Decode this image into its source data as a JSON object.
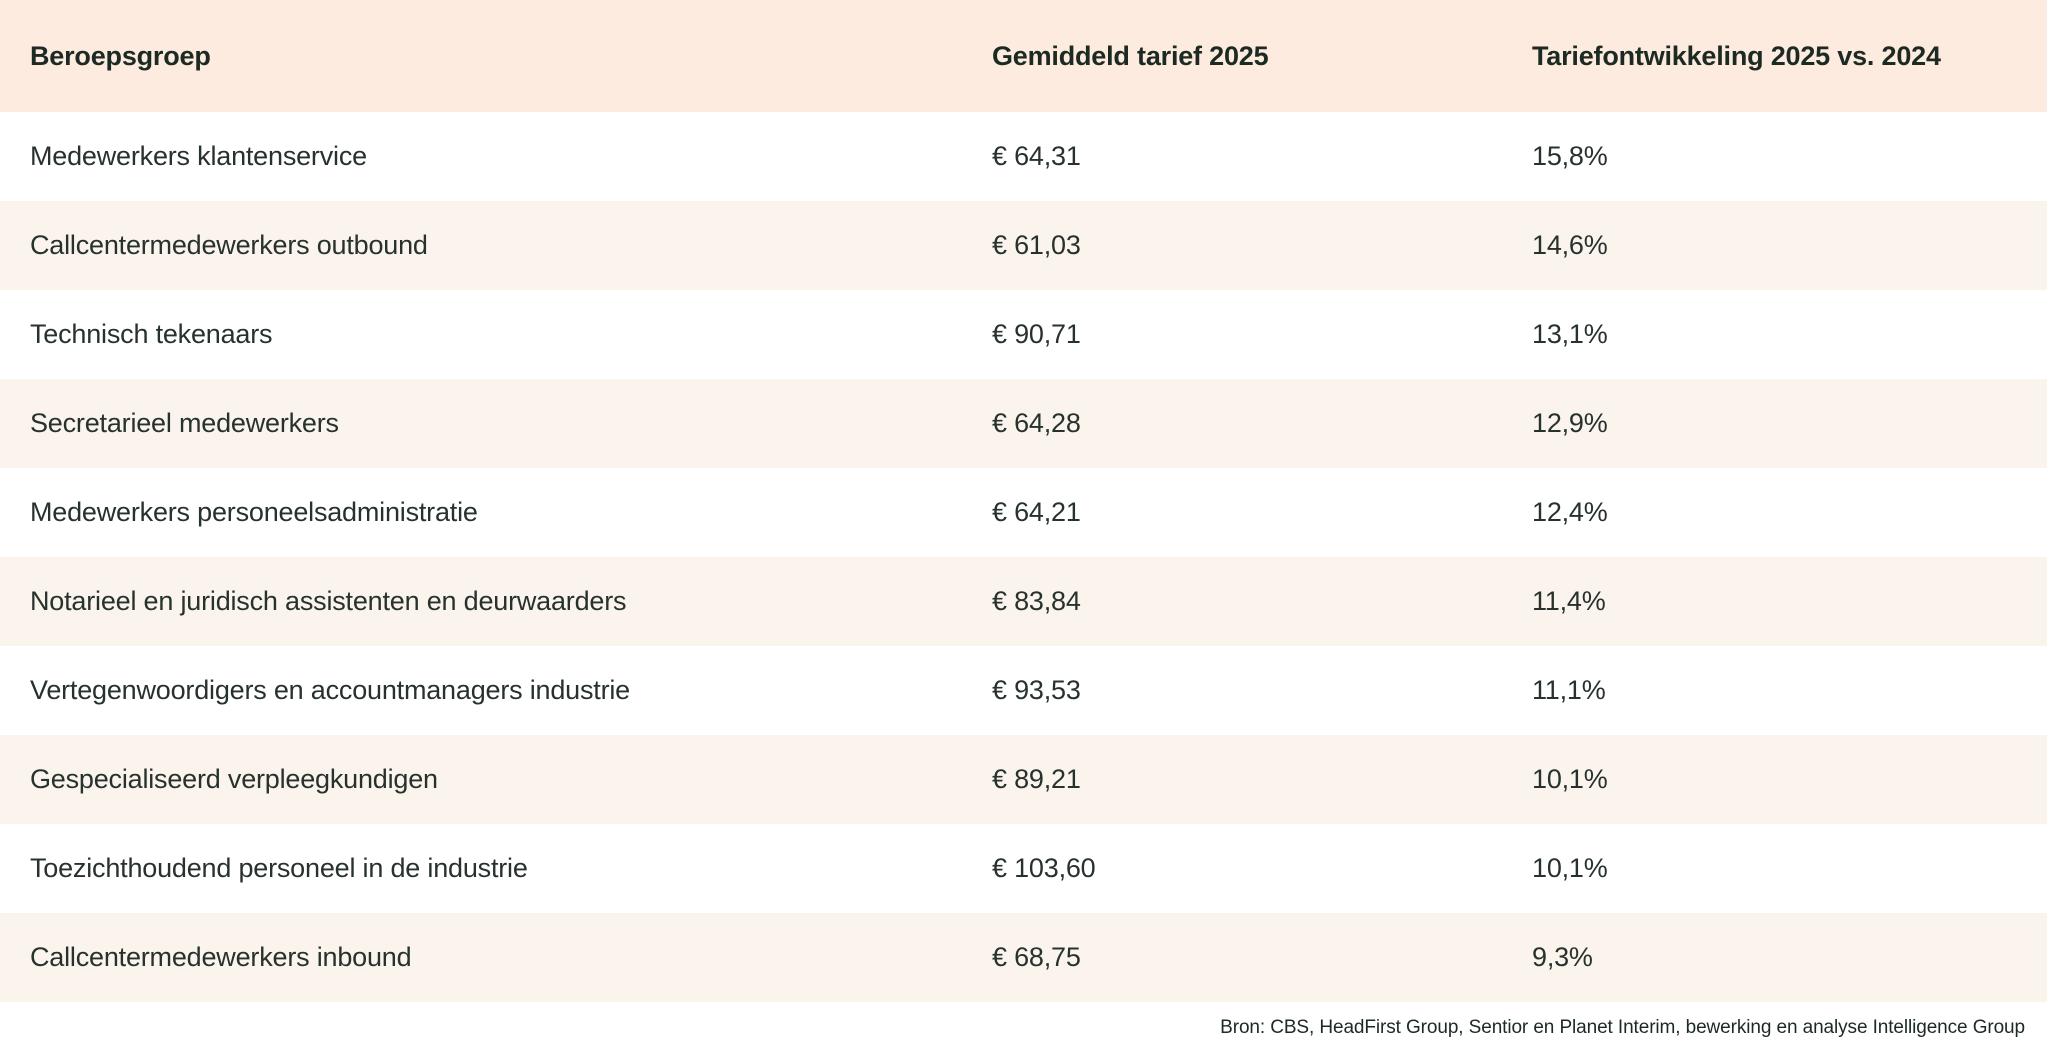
{
  "chart_data": {
    "type": "table",
    "columns": [
      "Beroepsgroep",
      "Gemiddeld tarief 2025",
      "Tariefontwikkeling 2025 vs. 2024"
    ],
    "rows": [
      [
        "Medewerkers klantenservice",
        "€ 64,31",
        "15,8%"
      ],
      [
        "Callcentermedewerkers outbound",
        "€ 61,03",
        "14,6%"
      ],
      [
        "Technisch tekenaars",
        "€ 90,71",
        "13,1%"
      ],
      [
        "Secretarieel medewerkers",
        "€ 64,28",
        "12,9%"
      ],
      [
        "Medewerkers personeelsadministratie",
        "€ 64,21",
        "12,4%"
      ],
      [
        "Notarieel en juridisch assistenten en deurwaarders",
        "€ 83,84",
        "11,4%"
      ],
      [
        "Vertegenwoordigers en accountmanagers industrie",
        "€ 93,53",
        "11,1%"
      ],
      [
        "Gespecialiseerd verpleegkundigen",
        "€ 89,21",
        "10,1%"
      ],
      [
        "Toezichthoudend personeel in de industrie",
        "€ 103,60",
        "10,1%"
      ],
      [
        "Callcentermedewerkers inbound",
        "€ 68,75",
        "9,3%"
      ]
    ],
    "source": "Bron: CBS, HeadFirst Group, Sentior en Planet Interim, bewerking en analyse Intelligence Group",
    "layout": {
      "header_bg": "#fcebde",
      "row_alt_bg": "#faf4ed",
      "row_bg": "#ffffff",
      "heading_text_color": "#1c2a23",
      "body_text_color": "#28322c",
      "grid": "none",
      "alternating_rows": true,
      "source_position": "bottom-right"
    }
  }
}
